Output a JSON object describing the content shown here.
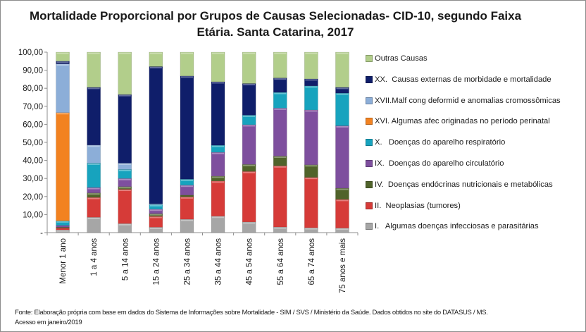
{
  "chart_data": {
    "type": "bar",
    "stacked": true,
    "title": "Mortalidade Proporcional por Grupos de Causas Selecionadas- CID-10, segundo Faixa Etária. Santa Catarina, 2017",
    "title_lines": [
      "Mortalidade Proporcional por Grupos de Causas Selecionadas- CID-10, segundo Faixa",
      "Etária. Santa Catarina, 2017"
    ],
    "categories": [
      "Menor 1 ano",
      "1 a 4 anos",
      "5 a 14 anos",
      "15 a 24 anos",
      "25 a 34 anos",
      "35 a 44 anos",
      "45 a 54 anos",
      "55 a 64 anos",
      "65 a 74 anos",
      "75 anos e mais"
    ],
    "ylim": [
      0,
      100
    ],
    "yticks": [
      "-",
      "10,00",
      "20,00",
      "30,00",
      "40,00",
      "50,00",
      "60,00",
      "70,00",
      "80,00",
      "90,00",
      "100,00"
    ],
    "grid": false,
    "legend_position": "right",
    "series": [
      {
        "name": "I.   Algumas doenças infecciosas e parasitárias",
        "color": "#a6a6a6",
        "values": [
          1.5,
          8.5,
          5.0,
          3.0,
          7.4,
          9.1,
          5.9,
          3.1,
          2.7,
          2.5
        ]
      },
      {
        "name": "II.  Neoplasias (tumores)",
        "color": "#d63b38",
        "values": [
          1.0,
          11.0,
          19.0,
          6.0,
          12.4,
          19.5,
          28.0,
          33.9,
          27.9,
          15.9
        ]
      },
      {
        "name": "IV.  Doenças endócrinas nutricionais e metabólicas",
        "color": "#50632a",
        "values": [
          0.5,
          2.5,
          1.5,
          1.5,
          1.0,
          2.7,
          3.9,
          5.4,
          7.0,
          6.2
        ]
      },
      {
        "name": "IX.  Doenças do aparelho circulatório",
        "color": "#7e4f9e",
        "values": [
          1.0,
          3.0,
          4.5,
          2.5,
          5.5,
          13.2,
          22.0,
          26.6,
          30.4,
          34.6
        ]
      },
      {
        "name": "X.   Doenças do aparelho respiratório",
        "color": "#17a3be",
        "values": [
          2.5,
          13.5,
          5.0,
          2.5,
          3.3,
          3.9,
          5.3,
          8.7,
          13.3,
          18.1
        ]
      },
      {
        "name": "XVI. Algumas afec originadas no período perinatal",
        "color": "#f28220",
        "values": [
          60.0,
          0,
          0,
          0,
          0,
          0,
          0,
          0,
          0,
          0
        ]
      },
      {
        "name": "XVII.Malf cong deformid e anomalias cromossômicas",
        "color": "#8caed8",
        "values": [
          27.0,
          10.0,
          3.5,
          0.5,
          0,
          0,
          0,
          0,
          0,
          0
        ]
      },
      {
        "name": "XX.  Causas externas de morbidade e mortalidade",
        "color": "#0f1e6a",
        "values": [
          1.5,
          32.0,
          38.0,
          76.0,
          57.2,
          35.2,
          17.5,
          8.0,
          3.9,
          3.2
        ]
      },
      {
        "name": "Outras Causas",
        "color": "#b2ce8b",
        "values": [
          5.0,
          19.5,
          23.5,
          8.0,
          13.2,
          16.4,
          17.4,
          14.3,
          14.8,
          19.5
        ]
      }
    ]
  },
  "source": {
    "line1": "Fonte: Elaboração própria com base em dados do  Sistema de Informações sobre Mortalidade - SIM / SVS / Ministério da Saúde. Dados obtidos no site do DATASUS / MS.",
    "line2": "Acesso em janeiro/2019"
  }
}
